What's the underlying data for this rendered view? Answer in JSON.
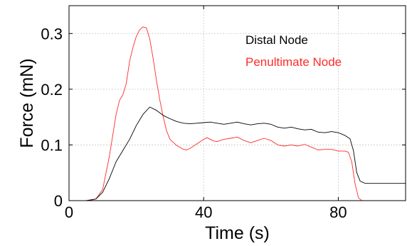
{
  "chart_data": {
    "type": "line",
    "xlabel": "Time (s)",
    "ylabel": "Force (mN)",
    "xlim": [
      0,
      100
    ],
    "ylim": [
      0,
      0.35
    ],
    "xticks": [
      0,
      40,
      80
    ],
    "xtick_labels": [
      "0",
      "40",
      "80"
    ],
    "yticks": [
      0,
      0.1,
      0.2,
      0.3
    ],
    "ytick_labels": [
      "0",
      "0.1",
      "0.2",
      "0.3"
    ],
    "grid": true,
    "legend_placement": "top-right",
    "series": [
      {
        "name": "Distal Node",
        "color": "#000000",
        "points": [
          [
            0,
            0
          ],
          [
            5,
            0
          ],
          [
            8,
            0.003
          ],
          [
            10,
            0.015
          ],
          [
            12,
            0.04
          ],
          [
            14,
            0.07
          ],
          [
            16,
            0.09
          ],
          [
            18,
            0.11
          ],
          [
            20,
            0.135
          ],
          [
            22,
            0.155
          ],
          [
            24,
            0.168
          ],
          [
            26,
            0.162
          ],
          [
            28,
            0.153
          ],
          [
            30,
            0.147
          ],
          [
            32,
            0.142
          ],
          [
            34,
            0.139
          ],
          [
            36,
            0.138
          ],
          [
            38,
            0.139
          ],
          [
            40,
            0.14
          ],
          [
            42,
            0.141
          ],
          [
            44,
            0.139
          ],
          [
            46,
            0.137
          ],
          [
            48,
            0.139
          ],
          [
            50,
            0.141
          ],
          [
            52,
            0.138
          ],
          [
            54,
            0.136
          ],
          [
            56,
            0.138
          ],
          [
            58,
            0.139
          ],
          [
            60,
            0.137
          ],
          [
            62,
            0.132
          ],
          [
            64,
            0.13
          ],
          [
            66,
            0.132
          ],
          [
            68,
            0.129
          ],
          [
            70,
            0.127
          ],
          [
            72,
            0.128
          ],
          [
            74,
            0.123
          ],
          [
            76,
            0.122
          ],
          [
            78,
            0.124
          ],
          [
            80,
            0.122
          ],
          [
            82,
            0.117
          ],
          [
            83.5,
            0.111
          ],
          [
            84.5,
            0.09
          ],
          [
            85.5,
            0.05
          ],
          [
            86.5,
            0.035
          ],
          [
            88,
            0.031
          ],
          [
            100,
            0.031
          ]
        ]
      },
      {
        "name": "Penultimate Node",
        "color": "#ff2a2a",
        "points": [
          [
            0,
            0
          ],
          [
            6,
            0
          ],
          [
            8,
            0.003
          ],
          [
            10,
            0.02
          ],
          [
            12,
            0.08
          ],
          [
            14,
            0.155
          ],
          [
            15,
            0.18
          ],
          [
            16,
            0.19
          ],
          [
            17,
            0.21
          ],
          [
            18,
            0.25
          ],
          [
            19,
            0.275
          ],
          [
            20,
            0.295
          ],
          [
            21,
            0.307
          ],
          [
            22,
            0.312
          ],
          [
            23,
            0.31
          ],
          [
            24,
            0.29
          ],
          [
            25,
            0.255
          ],
          [
            26,
            0.215
          ],
          [
            27,
            0.18
          ],
          [
            28,
            0.15
          ],
          [
            29,
            0.125
          ],
          [
            30,
            0.11
          ],
          [
            32,
            0.099
          ],
          [
            34,
            0.092
          ],
          [
            35,
            0.091
          ],
          [
            36,
            0.094
          ],
          [
            38,
            0.102
          ],
          [
            40,
            0.11
          ],
          [
            41,
            0.113
          ],
          [
            42,
            0.11
          ],
          [
            43,
            0.107
          ],
          [
            44,
            0.106
          ],
          [
            46,
            0.11
          ],
          [
            48,
            0.112
          ],
          [
            50,
            0.114
          ],
          [
            52,
            0.108
          ],
          [
            54,
            0.104
          ],
          [
            56,
            0.108
          ],
          [
            58,
            0.112
          ],
          [
            60,
            0.108
          ],
          [
            62,
            0.1
          ],
          [
            64,
            0.098
          ],
          [
            66,
            0.1
          ],
          [
            68,
            0.098
          ],
          [
            70,
            0.101
          ],
          [
            72,
            0.096
          ],
          [
            74,
            0.091
          ],
          [
            76,
            0.092
          ],
          [
            78,
            0.092
          ],
          [
            80,
            0.089
          ],
          [
            82,
            0.089
          ],
          [
            83,
            0.087
          ],
          [
            84,
            0.07
          ],
          [
            85,
            0.03
          ],
          [
            86,
            0.005
          ],
          [
            87,
            0
          ],
          [
            100,
            0
          ]
        ]
      }
    ]
  }
}
